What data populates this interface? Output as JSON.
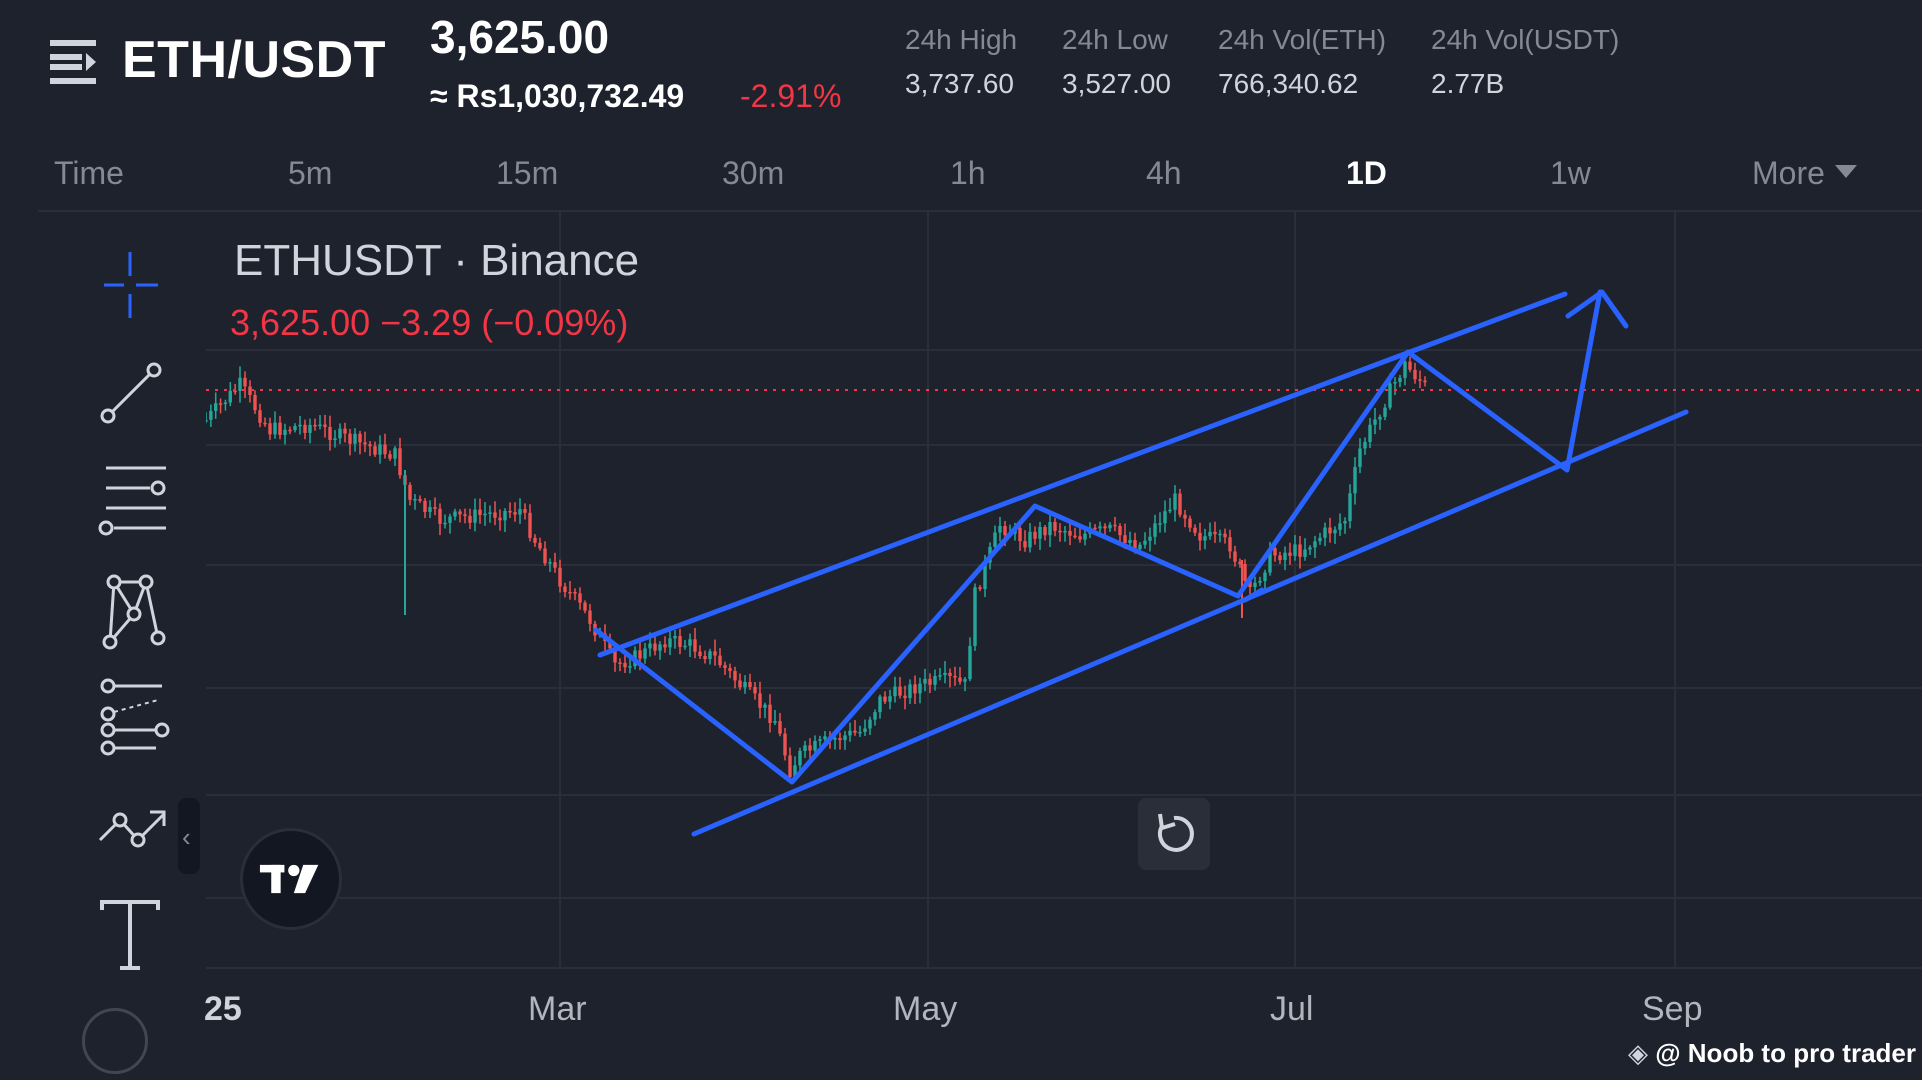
{
  "header": {
    "pair": "ETH/USDT",
    "price": "3,625.00",
    "converted": "≈ Rs1,030,732.49",
    "change_pct": "-2.91%",
    "stats": [
      {
        "label": "24h High",
        "value": "3,737.60"
      },
      {
        "label": "24h Low",
        "value": "3,527.00"
      },
      {
        "label": "24h Vol(ETH)",
        "value": "766,340.62"
      },
      {
        "label": "24h Vol(USDT)",
        "value": "2.77B"
      }
    ]
  },
  "timeframes": [
    {
      "label": "Time",
      "active": false
    },
    {
      "label": "5m",
      "active": false
    },
    {
      "label": "15m",
      "active": false
    },
    {
      "label": "30m",
      "active": false
    },
    {
      "label": "1h",
      "active": false
    },
    {
      "label": "4h",
      "active": false
    },
    {
      "label": "1D",
      "active": true
    },
    {
      "label": "1w",
      "active": false
    },
    {
      "label": "More",
      "active": false
    }
  ],
  "toolbar": {
    "tools": [
      "crosshair-icon",
      "trend-line-icon",
      "horizontal-lines-icon",
      "pattern-icon",
      "fib-icon",
      "forecast-icon",
      "text-icon"
    ]
  },
  "chart": {
    "symbol_title": "ETHUSDT · Binance",
    "legend_values": "3,625.00  −3.29 (−0.09%)",
    "x_ticks": [
      "25",
      "Mar",
      "May",
      "Jul",
      "Sep"
    ],
    "watermark": "@ Noob to pro trader",
    "colors": {
      "up": "#26a69a",
      "down": "#ef5350",
      "drawing": "#2962ff",
      "price_line": "#f23645"
    }
  }
}
